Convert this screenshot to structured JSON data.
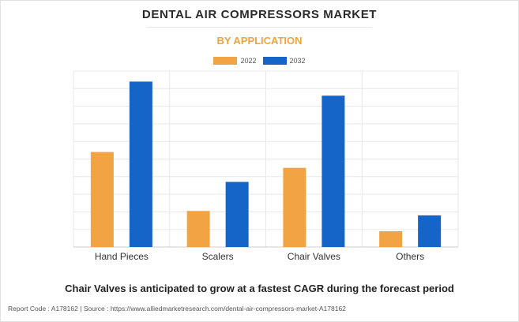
{
  "header": {
    "title": "DENTAL AIR COMPRESSORS MARKET",
    "subtitle": "BY APPLICATION"
  },
  "footer": {
    "headline": "Chair Valves is anticipated to grow at a fastest CAGR during the forecast period",
    "report_code": "Report Code : A178162",
    "separator": "|",
    "source": "Source : https://www.alliedmarketresearch.com/dental-air-compressors-market-A178162"
  },
  "colors": {
    "series_2022": "#f2a444",
    "series_2032": "#1565c8",
    "grid": "#e8e8e8",
    "axis": "#cccccc"
  },
  "chart_data": {
    "type": "bar",
    "categories": [
      "Hand Pieces",
      "Scalers",
      "Chair Valves",
      "Others"
    ],
    "series": [
      {
        "name": "2022",
        "values": [
          54,
          20.5,
          45,
          9
        ]
      },
      {
        "name": "2032",
        "values": [
          94,
          37,
          86,
          18
        ]
      }
    ],
    "ylim": [
      0,
      100
    ],
    "grid": true,
    "legend_position": "top-center",
    "title": "DENTAL AIR COMPRESSORS MARKET",
    "subtitle": "BY APPLICATION",
    "xlabel": "",
    "ylabel": ""
  }
}
